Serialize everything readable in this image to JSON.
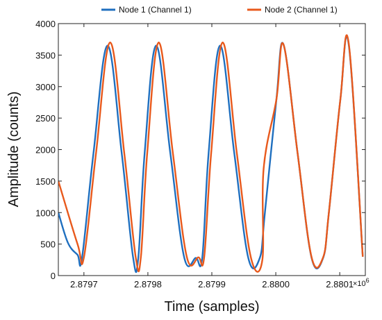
{
  "chart_data": {
    "type": "line",
    "title": "",
    "xlabel": "Time (samples)",
    "ylabel": "Amplitude (counts)",
    "x_exponent_label": "×10^6",
    "xlim": [
      2.87966,
      2.88014
    ],
    "ylim": [
      0,
      4000
    ],
    "x_ticks": [
      2.8797,
      2.8798,
      2.8799,
      2.88,
      2.8801
    ],
    "x_tick_labels": [
      "2.8797",
      "2.8798",
      "2.8799",
      "2.8800",
      "2.8801"
    ],
    "y_ticks": [
      0,
      500,
      1000,
      1500,
      2000,
      2500,
      3000,
      3500,
      4000
    ],
    "y_tick_labels": [
      "0",
      "500",
      "1000",
      "1500",
      "2000",
      "2500",
      "3000",
      "3500",
      "4000"
    ],
    "grid": false,
    "legend_position": "top",
    "series": [
      {
        "name": "Node 1 (Channel 1)",
        "color": "#1f6fbf",
        "x": [
          2.87966,
          2.879675,
          2.87969,
          2.879697,
          2.879715,
          2.879737,
          2.879759,
          2.879777,
          2.879785,
          2.879795,
          2.879813,
          2.879835,
          2.879857,
          2.879875,
          2.879885,
          2.879895,
          2.879913,
          2.879935,
          2.879957,
          2.879975,
          2.879983,
          2.880001,
          2.880012,
          2.880034,
          2.880056,
          2.880074,
          2.880083,
          2.880101,
          2.880114,
          2.880136
        ],
        "y": [
          1000,
          520,
          330,
          280,
          1950,
          3650,
          1950,
          280,
          280,
          1950,
          3650,
          1950,
          280,
          280,
          280,
          1950,
          3650,
          1950,
          280,
          280,
          1000,
          2800,
          3670,
          1950,
          280,
          280,
          1000,
          2800,
          3670,
          300
        ]
      },
      {
        "name": "Node 2 (Channel 1)",
        "color": "#e8591c",
        "x": [
          2.87966,
          2.87969,
          2.8797,
          2.879719,
          2.879741,
          2.879763,
          2.879781,
          2.879789,
          2.879799,
          2.879817,
          2.879839,
          2.879861,
          2.879879,
          2.879888,
          2.879899,
          2.879917,
          2.879939,
          2.879961,
          2.879979,
          2.879981,
          2.880001,
          2.880012,
          2.880034,
          2.880056,
          2.880074,
          2.880083,
          2.880101,
          2.880114,
          2.880136
        ],
        "y": [
          1500,
          500,
          290,
          1950,
          3700,
          1950,
          290,
          290,
          1950,
          3700,
          1950,
          290,
          290,
          290,
          1950,
          3700,
          1950,
          290,
          250,
          1700,
          2800,
          3670,
          1950,
          290,
          290,
          1000,
          2800,
          3690,
          300
        ]
      }
    ]
  }
}
